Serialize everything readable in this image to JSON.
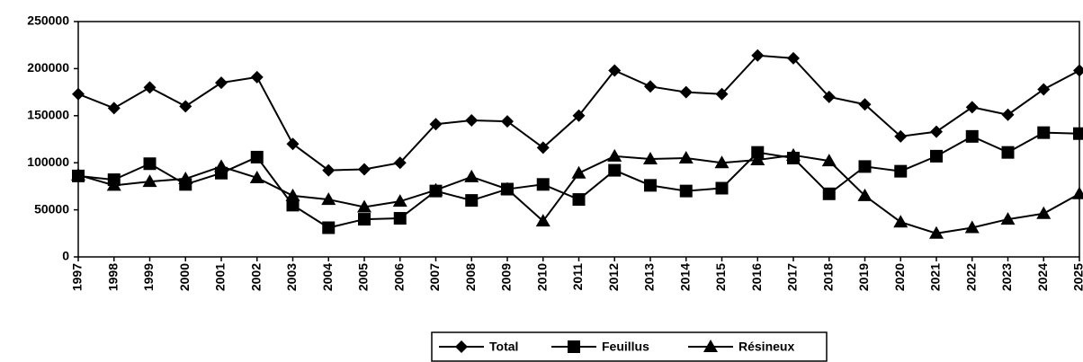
{
  "chart_data": {
    "type": "line",
    "categories": [
      "1997",
      "1998",
      "1999",
      "2000",
      "2001",
      "2002",
      "2003",
      "2004",
      "2005",
      "2006",
      "2007",
      "2008",
      "2009",
      "2010",
      "2011",
      "2012",
      "2013",
      "2014",
      "2015",
      "2016",
      "2017",
      "2018",
      "2019",
      "2020",
      "2021",
      "2022",
      "2023",
      "2024",
      "2025"
    ],
    "series": [
      {
        "name": "Total",
        "color": "#000000",
        "marker": "diamond",
        "values": [
          173000,
          158000,
          180000,
          160000,
          185000,
          191000,
          120000,
          92000,
          93000,
          100000,
          141000,
          145000,
          144000,
          116000,
          150000,
          198000,
          181000,
          175000,
          173000,
          214000,
          211000,
          170000,
          162000,
          128000,
          133000,
          159000,
          151000,
          178000,
          198000
        ]
      },
      {
        "name": "Feuillus",
        "color": "#000000",
        "marker": "square",
        "values": [
          86000,
          82000,
          99000,
          77000,
          89000,
          106000,
          55000,
          31000,
          40000,
          41000,
          70000,
          60000,
          72000,
          77000,
          61000,
          92000,
          76000,
          70000,
          73000,
          111000,
          105000,
          67000,
          96000,
          91000,
          107000,
          128000,
          111000,
          132000,
          131000
        ]
      },
      {
        "name": "Résineux",
        "color": "#000000",
        "marker": "triangle",
        "values": [
          87000,
          76000,
          80000,
          83000,
          96000,
          84000,
          65000,
          61000,
          53000,
          59000,
          71000,
          85000,
          72000,
          38000,
          89000,
          107000,
          104000,
          105000,
          100000,
          103000,
          108000,
          102000,
          65000,
          37000,
          25000,
          31000,
          40000,
          46000,
          67000
        ]
      }
    ],
    "ylim": [
      0,
      250000
    ],
    "yticks": [
      0,
      50000,
      100000,
      150000,
      200000,
      250000
    ],
    "grid": false,
    "legend": "bottom"
  }
}
